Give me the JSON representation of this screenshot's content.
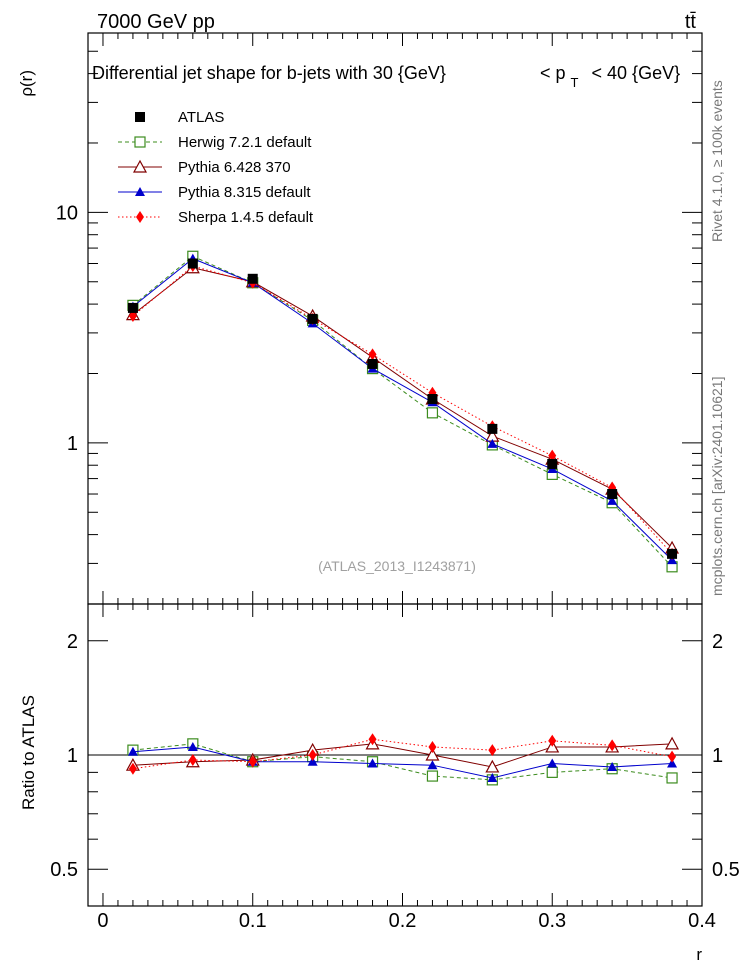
{
  "header": {
    "energy_label": "7000 GeV pp",
    "process_label": "tt̄"
  },
  "side_labels": {
    "rivet": "Rivet 4.1.0, ≥ 100k events",
    "mcplots": "mcplots.cern.ch [arXiv:2401.10621]"
  },
  "source_label": "(ATLAS_2013_I1243871)",
  "chart_data": [
    {
      "type": "line",
      "panel": "main",
      "title": "Differential jet shape for b-jets with 30 {GeV}    < p_T < 40 {GeV}",
      "title_parts": {
        "prefix": "Differential jet shape for b-jets with 30 {GeV}",
        "p": "< p",
        "sub": "T",
        "suffix": "< 40 {GeV}"
      },
      "ylabel": "ρ(r)",
      "xlabel": "r",
      "yscale": "log",
      "ylim": [
        0.2,
        60
      ],
      "xlim": [
        -0.01,
        0.4
      ],
      "x_ticks": [
        0,
        0.1,
        0.2,
        0.3,
        0.4
      ],
      "x_tick_labels": [
        "0",
        "0.1",
        "0.2",
        "0.3",
        "0.4"
      ],
      "y_ticks": [
        1,
        10
      ],
      "y_tick_labels": [
        "1",
        "10"
      ],
      "x": [
        0.02,
        0.06,
        0.1,
        0.14,
        0.18,
        0.22,
        0.26,
        0.3,
        0.34,
        0.38
      ],
      "series": [
        {
          "name": "ATLAS",
          "color": "#000000",
          "marker": "square-filled",
          "line": "none",
          "values": [
            3.85,
            6.0,
            5.15,
            3.45,
            2.2,
            1.55,
            1.15,
            0.81,
            0.6,
            0.33
          ]
        },
        {
          "name": "Herwig 7.2.1 default",
          "color": "#3c8c1e",
          "marker": "square-open",
          "line": "dashed",
          "values": [
            3.95,
            6.45,
            4.95,
            3.4,
            2.1,
            1.35,
            0.98,
            0.73,
            0.55,
            0.29
          ]
        },
        {
          "name": "Pythia 6.428 370",
          "color": "#800000",
          "marker": "triangle-open",
          "line": "solid",
          "values": [
            3.6,
            5.75,
            5.0,
            3.55,
            2.35,
            1.55,
            1.07,
            0.85,
            0.63,
            0.35
          ]
        },
        {
          "name": "Pythia 8.315 default",
          "color": "#0000cc",
          "marker": "triangle-filled",
          "line": "solid",
          "values": [
            3.9,
            6.3,
            4.95,
            3.3,
            2.1,
            1.5,
            0.99,
            0.77,
            0.56,
            0.31
          ]
        },
        {
          "name": "Sherpa 1.4.5 default",
          "color": "#ff0000",
          "marker": "diamond-filled",
          "line": "dotted",
          "values": [
            3.55,
            5.85,
            4.95,
            3.45,
            2.42,
            1.65,
            1.18,
            0.88,
            0.64,
            0.33
          ]
        }
      ]
    },
    {
      "type": "line",
      "panel": "ratio",
      "ylabel": "Ratio to ATLAS",
      "xlabel": "r",
      "yscale": "log",
      "ylim": [
        0.4,
        2.5
      ],
      "y_ticks": [
        0.5,
        1,
        2
      ],
      "y_tick_labels": [
        "0.5",
        "1",
        "2"
      ],
      "x": [
        0.02,
        0.06,
        0.1,
        0.14,
        0.18,
        0.22,
        0.26,
        0.3,
        0.34,
        0.38
      ],
      "series": [
        {
          "name": "Herwig 7.2.1 default",
          "values": [
            1.03,
            1.07,
            0.96,
            0.99,
            0.96,
            0.88,
            0.86,
            0.9,
            0.92,
            0.87
          ]
        },
        {
          "name": "Pythia 6.428 370",
          "values": [
            0.94,
            0.96,
            0.97,
            1.03,
            1.07,
            1.0,
            0.93,
            1.05,
            1.05,
            1.07
          ]
        },
        {
          "name": "Pythia 8.315 default",
          "values": [
            1.02,
            1.05,
            0.96,
            0.96,
            0.95,
            0.94,
            0.87,
            0.95,
            0.93,
            0.95
          ]
        },
        {
          "name": "Sherpa 1.4.5 default",
          "values": [
            0.92,
            0.97,
            0.96,
            1.0,
            1.1,
            1.05,
            1.03,
            1.09,
            1.06,
            0.99
          ]
        }
      ]
    }
  ]
}
